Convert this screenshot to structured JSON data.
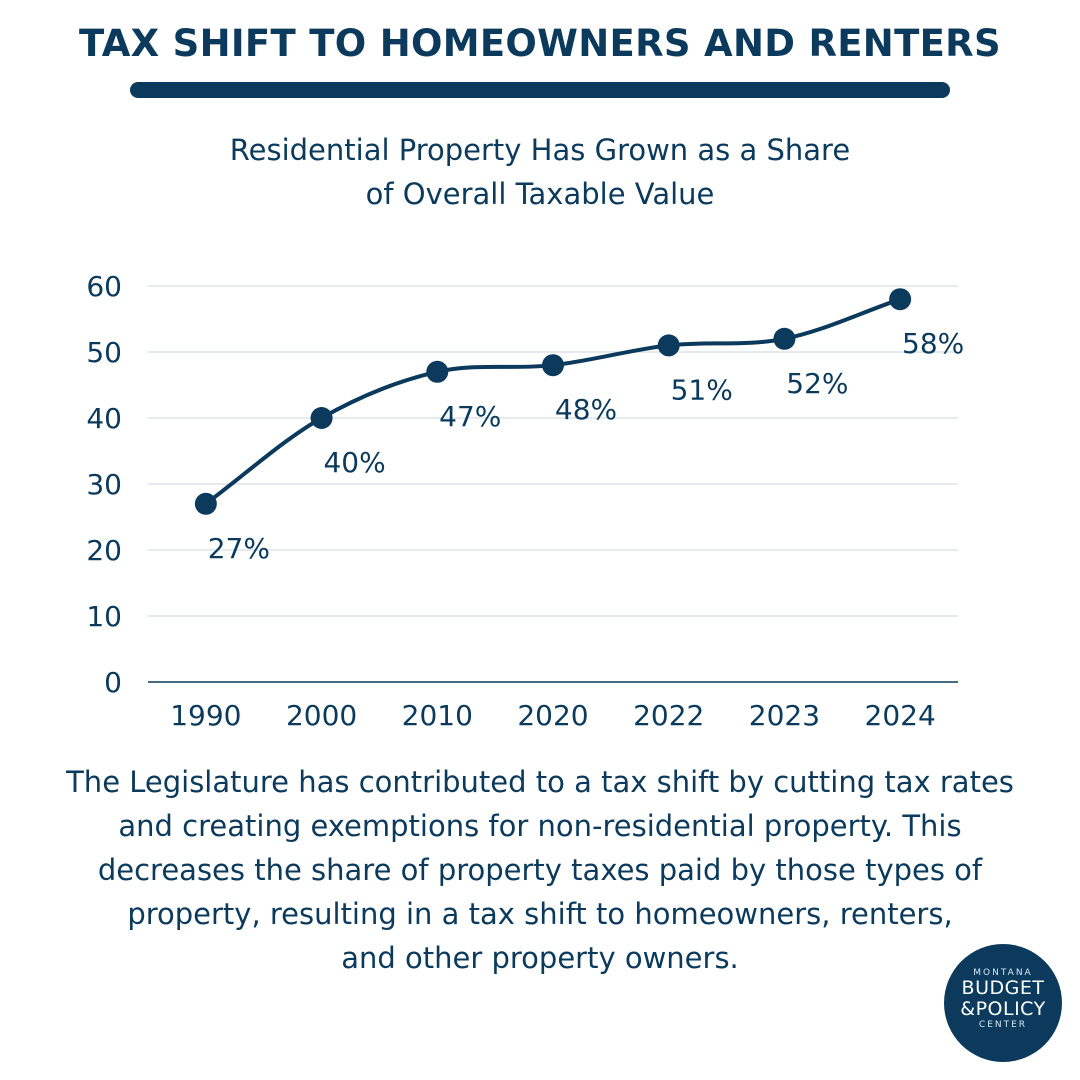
{
  "header": {
    "title": "TAX SHIFT TO HOMEOWNERS AND RENTERS",
    "subtitle_line1": "Residential Property Has Grown as a Share",
    "subtitle_line2": "of Overall Taxable Value"
  },
  "chart_data": {
    "type": "line",
    "title": "Residential Property Has Grown as a Share of Overall Taxable Value",
    "categories": [
      "1990",
      "2000",
      "2010",
      "2020",
      "2022",
      "2023",
      "2024"
    ],
    "values": [
      27,
      40,
      47,
      48,
      51,
      52,
      58
    ],
    "data_labels": [
      "27%",
      "40%",
      "47%",
      "48%",
      "51%",
      "52%",
      "58%"
    ],
    "yticks": [
      "0",
      "10",
      "20",
      "30",
      "40",
      "50",
      "60"
    ],
    "ylim": [
      0,
      60
    ],
    "grid": true,
    "legend": "none",
    "line_color": "#0b3a5c",
    "grid_color": "#d5dde5"
  },
  "caption": {
    "line1": "The Legislature has contributed to a tax shift by cutting tax rates",
    "line2": "and creating exemptions for non-residential property. This",
    "line3": "decreases the share of property taxes paid by those types of",
    "line4": "property, resulting in a tax shift to homeowners, renters,",
    "line5": "and other property owners."
  },
  "logo": {
    "line1": "MONTANA",
    "line2": "BUDGET",
    "line3": "&POLICY",
    "line4": "CENTER"
  }
}
